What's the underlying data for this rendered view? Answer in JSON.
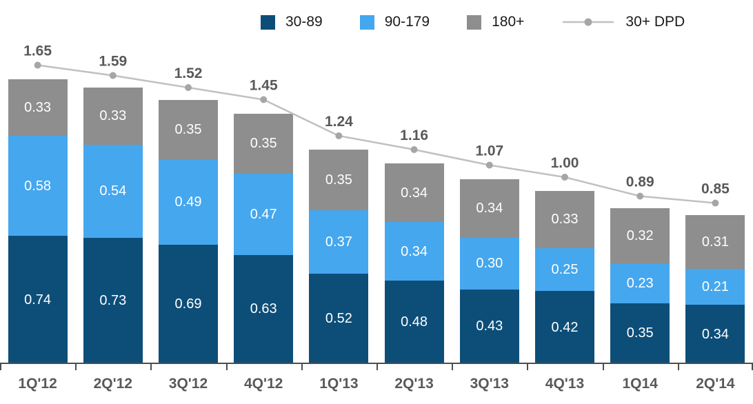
{
  "chart_data": {
    "type": "bar",
    "subtype": "stacked-bar-with-line",
    "title": "",
    "xlabel": "",
    "ylabel": "",
    "grid": false,
    "legend_position": "top",
    "categories": [
      "1Q'12",
      "2Q'12",
      "3Q'12",
      "4Q'12",
      "1Q'13",
      "2Q'13",
      "3Q'13",
      "4Q'13",
      "1Q14",
      "2Q'14"
    ],
    "series": [
      {
        "name": "30-89",
        "color": "#0d4e79",
        "values": [
          0.74,
          0.73,
          0.69,
          0.63,
          0.52,
          0.48,
          0.43,
          0.42,
          0.35,
          0.34
        ]
      },
      {
        "name": "90-179",
        "color": "#45a7ee",
        "values": [
          0.58,
          0.54,
          0.49,
          0.47,
          0.37,
          0.34,
          0.3,
          0.25,
          0.23,
          0.21
        ]
      },
      {
        "name": "180+",
        "color": "#8e8e8e",
        "values": [
          0.33,
          0.33,
          0.35,
          0.35,
          0.35,
          0.34,
          0.34,
          0.33,
          0.32,
          0.31
        ]
      }
    ],
    "line_series": {
      "name": "30+ DPD",
      "line_color": "#c0c0c0",
      "marker_color": "#a6a6a6",
      "label_color": "#595959",
      "values": [
        1.65,
        1.59,
        1.52,
        1.45,
        1.24,
        1.16,
        1.07,
        1.0,
        0.89,
        0.85
      ]
    },
    "value_label_color": "#ffffff",
    "axis_label_color": "#595959"
  }
}
